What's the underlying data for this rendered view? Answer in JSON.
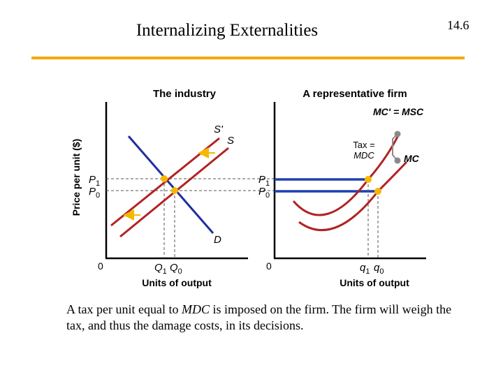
{
  "slide": {
    "title": "Internalizing Externalities",
    "number": "14.6",
    "caption_parts": [
      "A tax per unit equal to ",
      "MDC",
      " is imposed on the firm.  The firm will weigh the tax, and thus the damage costs, in its decisions."
    ]
  },
  "colors": {
    "accent_rule": "#f5a800",
    "supply_curves": "#b22222",
    "demand_curve": "#1f2f9e",
    "equilibrium_points": "#f5b800",
    "price_lines": "#1f3fb0",
    "arrows": "#f5b800",
    "mc_dots": "#8a8a8a"
  },
  "industry": {
    "title": "The industry",
    "y_axis_label": "Price per unit ($)",
    "x_axis_label": "Units of output",
    "origin_label": "0",
    "price_labels": [
      {
        "main": "P",
        "sub": "1"
      },
      {
        "main": "P",
        "sub": "0"
      }
    ],
    "quantity_labels": [
      {
        "main": "Q",
        "sub": "1"
      },
      {
        "main": "Q",
        "sub": "0"
      }
    ],
    "curve_labels": [
      "S'",
      "S",
      "D"
    ]
  },
  "firm": {
    "title": "A representative firm",
    "x_axis_label": "Units of output",
    "origin_label": "0",
    "price_labels": [
      {
        "main": "P",
        "sub": "1"
      },
      {
        "main": "P",
        "sub": "0"
      }
    ],
    "quantity_labels": [
      {
        "main": "q",
        "sub": "1"
      },
      {
        "main": "q",
        "sub": "0"
      }
    ],
    "curve_labels": [
      "MC' = MSC",
      "MC"
    ],
    "tax_label_lines": [
      "Tax =",
      "MDC"
    ]
  }
}
